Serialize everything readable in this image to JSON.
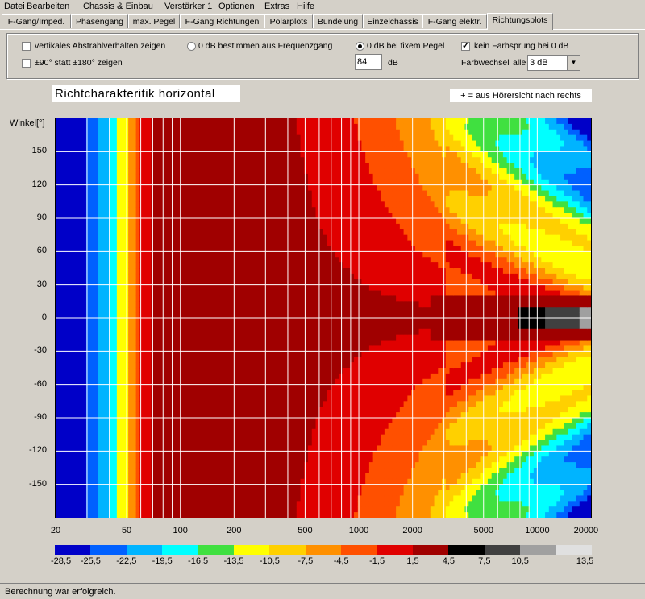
{
  "menu": [
    "Datei",
    "Bearbeiten",
    "Chassis & Einbau",
    "Verstärker 1",
    "Optionen",
    "Extras",
    "Hilfe"
  ],
  "tabs": [
    "F-Gang/Imped.",
    "Phasengang",
    "max. Pegel",
    "F-Gang Richtungen",
    "Polarplots",
    "Bündelung",
    "Einzelchassis",
    "F-Gang elektr.",
    "Richtungsplots"
  ],
  "active_tab": "Richtungsplots",
  "options": {
    "vertical_label": "vertikales Abstrahlverhalten zeigen",
    "vertical_checked": false,
    "range_label": "±90° statt ±180° zeigen",
    "range_checked": false,
    "radio_freq_label": "0 dB bestimmen aus Frequenzgang",
    "radio_fixed_label": "0 dB bei fixem Pegel",
    "radio_fixed_selected": true,
    "level_value": "84",
    "level_unit": "dB",
    "no_jump_label": "kein Farbsprung bei 0 dB",
    "no_jump_checked": true,
    "color_change_label": "Farbwechsel",
    "color_change_every": "alle",
    "color_change_value": "3 dB"
  },
  "chart_data": {
    "type": "heatmap",
    "title": "Richtcharakteritik horizontal",
    "note": "+ = aus Hörersicht nach rechts",
    "ylabel": "Winkel[°]",
    "xlabel": "",
    "x_scale": "log",
    "xlim": [
      20,
      20000
    ],
    "ylim": [
      -180,
      180
    ],
    "x_ticks": [
      "20",
      "50",
      "100",
      "200",
      "500",
      "1000",
      "2000",
      "5000",
      "10000",
      "20000"
    ],
    "y_ticks": [
      "150",
      "120",
      "90",
      "60",
      "30",
      "0",
      "-30",
      "-60",
      "-90",
      "-120",
      "-150"
    ],
    "grid": true,
    "legend": {
      "placement": "bottom",
      "levels": [
        "-28,5",
        "-25,5",
        "-22,5",
        "-19,5",
        "-16,5",
        "-13,5",
        "-10,5",
        "-7,5",
        "-4,5",
        "-1,5",
        "1,5",
        "4,5",
        "7,5",
        "10,5",
        "13,5"
      ],
      "colors": [
        "#0000c8",
        "#0060ff",
        "#00b4ff",
        "#00ffff",
        "#40e040",
        "#ffff00",
        "#ffd000",
        "#ff9000",
        "#ff5000",
        "#e00000",
        "#a00000",
        "#000000",
        "#404040",
        "#a0a0a0",
        "#e0e0e0"
      ]
    },
    "frequency_bands_hz": [
      20,
      30,
      35,
      40,
      45,
      50,
      55,
      60,
      70,
      100,
      200,
      300,
      400,
      500,
      700,
      1000,
      1500,
      2000,
      3000,
      5000,
      7000,
      10000,
      15000,
      20000
    ]
  },
  "status": "Berechnung war erfolgreich."
}
